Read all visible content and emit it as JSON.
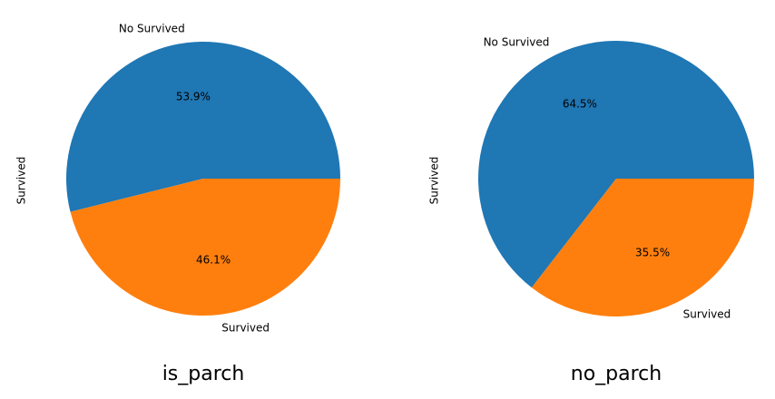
{
  "chart_data": [
    {
      "type": "pie",
      "title": "is_parch",
      "ylabel": "Survived",
      "labels": [
        "No Survived",
        "Survived"
      ],
      "values": [
        53.9,
        46.1
      ],
      "autopct_labels": [
        "53.9%",
        "46.1%"
      ],
      "colors": [
        "#1f77b4",
        "#ff7f0e"
      ],
      "start_angle_deg": 0,
      "direction": "counterclockwise"
    },
    {
      "type": "pie",
      "title": "no_parch",
      "ylabel": "Survived",
      "labels": [
        "No Survived",
        "Survived"
      ],
      "values": [
        64.5,
        35.5
      ],
      "autopct_labels": [
        "64.5%",
        "35.5%"
      ],
      "colors": [
        "#1f77b4",
        "#ff7f0e"
      ],
      "start_angle_deg": 0,
      "direction": "counterclockwise"
    }
  ]
}
